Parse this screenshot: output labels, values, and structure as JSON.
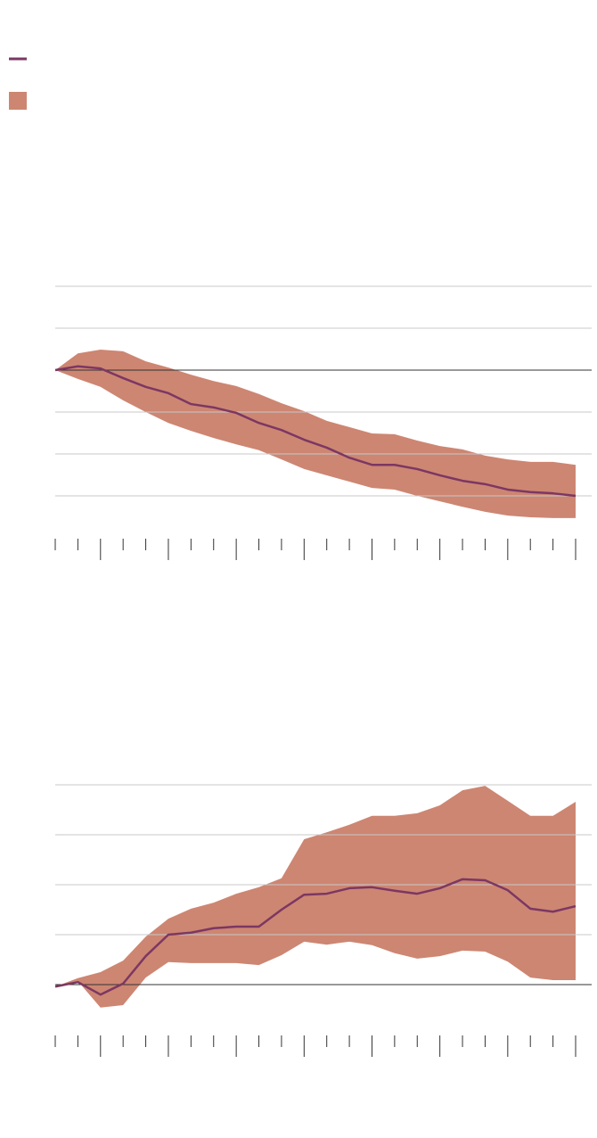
{
  "chart_data": [
    {
      "type": "line",
      "x": [
        0,
        1,
        2,
        3,
        4,
        5,
        6,
        7,
        8,
        9,
        10,
        11,
        12,
        13,
        14,
        15,
        16,
        17,
        18,
        19,
        20,
        21,
        22,
        23
      ],
      "xlim": [
        0,
        23
      ],
      "xticks": [
        0,
        1,
        2,
        3,
        4,
        5,
        6,
        7,
        8,
        9,
        10,
        11,
        12,
        13,
        14,
        15,
        16,
        17,
        18,
        19,
        20,
        21,
        22,
        23
      ],
      "major_tick_every": 3,
      "ylim": [
        -4,
        2
      ],
      "yticks": [
        -3,
        -2,
        -1,
        0,
        1,
        2
      ],
      "grid": true,
      "series": [
        {
          "color": "#7c3763",
          "values": [
            0,
            0.09,
            0.04,
            -0.19,
            -0.4,
            -0.55,
            -0.81,
            -0.89,
            -1.02,
            -1.26,
            -1.43,
            -1.66,
            -1.85,
            -2.09,
            -2.26,
            -2.26,
            -2.36,
            -2.51,
            -2.64,
            -2.72,
            -2.85,
            -2.91,
            -2.94,
            -3
          ]
        }
      ],
      "band": {
        "color": "#cd8672",
        "upper": [
          0,
          0.4,
          0.49,
          0.45,
          0.21,
          0.06,
          -0.11,
          -0.26,
          -0.38,
          -0.57,
          -0.79,
          -0.98,
          -1.21,
          -1.36,
          -1.51,
          -1.53,
          -1.68,
          -1.81,
          -1.89,
          -2.04,
          -2.13,
          -2.19,
          -2.19,
          -2.26
        ],
        "lower": [
          0,
          -0.21,
          -0.4,
          -0.72,
          -1,
          -1.26,
          -1.45,
          -1.62,
          -1.77,
          -1.91,
          -2.13,
          -2.36,
          -2.51,
          -2.66,
          -2.81,
          -2.85,
          -3,
          -3.13,
          -3.26,
          -3.38,
          -3.47,
          -3.51,
          -3.53,
          -3.53
        ]
      }
    },
    {
      "type": "line",
      "x": [
        0,
        1,
        2,
        3,
        4,
        5,
        6,
        7,
        8,
        9,
        10,
        11,
        12,
        13,
        14,
        15,
        16,
        17,
        18,
        19,
        20,
        21,
        22,
        23
      ],
      "xlim": [
        0,
        23
      ],
      "xticks": [
        0,
        1,
        2,
        3,
        4,
        5,
        6,
        7,
        8,
        9,
        10,
        11,
        12,
        13,
        14,
        15,
        16,
        17,
        18,
        19,
        20,
        21,
        22,
        23
      ],
      "major_tick_every": 3,
      "ylim": [
        -1,
        4
      ],
      "yticks": [
        0,
        1,
        2,
        3,
        4
      ],
      "grid": true,
      "series": [
        {
          "color": "#7c3763",
          "values": [
            -0.04,
            0.05,
            -0.2,
            0.02,
            0.57,
            1,
            1.04,
            1.13,
            1.16,
            1.16,
            1.5,
            1.8,
            1.82,
            1.93,
            1.95,
            1.88,
            1.82,
            1.93,
            2.11,
            2.09,
            1.89,
            1.52,
            1.46,
            1.57
          ]
        }
      ],
      "band": {
        "color": "#cd8672",
        "upper": [
          -0.04,
          0.13,
          0.25,
          0.48,
          0.96,
          1.32,
          1.52,
          1.64,
          1.82,
          1.95,
          2.13,
          2.91,
          3.05,
          3.2,
          3.38,
          3.38,
          3.43,
          3.59,
          3.89,
          3.98,
          3.68,
          3.38,
          3.38,
          3.66
        ],
        "lower": [
          -0.04,
          0.07,
          -0.46,
          -0.41,
          0.14,
          0.45,
          0.43,
          0.43,
          0.43,
          0.39,
          0.59,
          0.86,
          0.8,
          0.86,
          0.79,
          0.63,
          0.52,
          0.57,
          0.68,
          0.66,
          0.46,
          0.14,
          0.09,
          0.09
        ]
      }
    }
  ]
}
